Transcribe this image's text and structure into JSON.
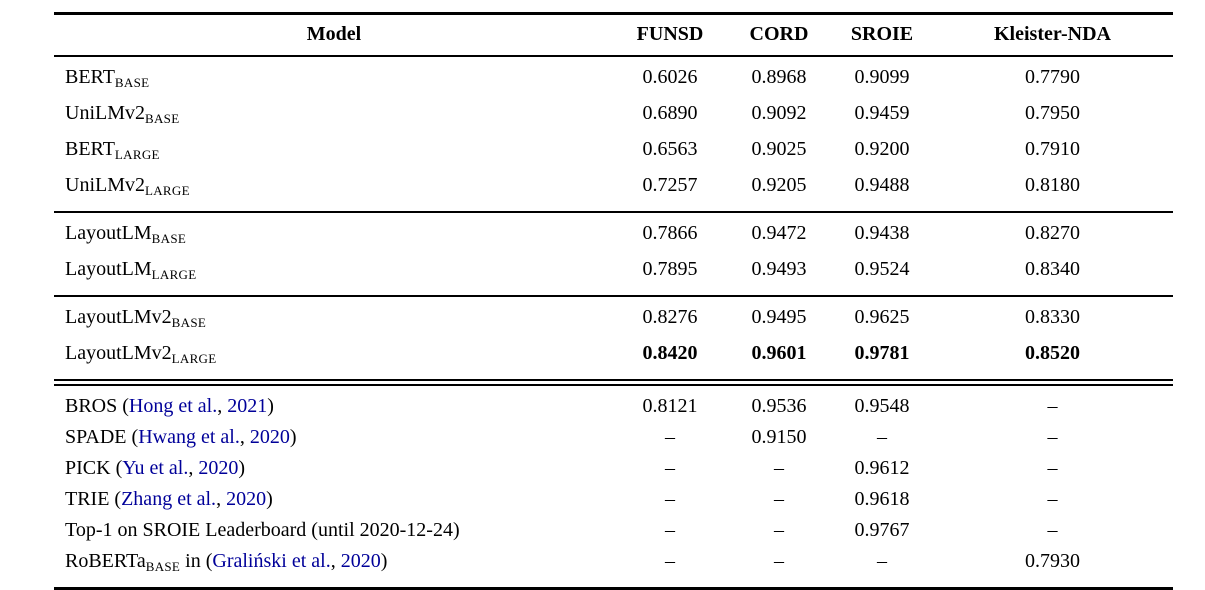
{
  "page": {
    "background": "#ffffff"
  },
  "colors": {
    "text": "#000000",
    "rule": "#000000",
    "citation": "#000099"
  },
  "table": {
    "columns": [
      "Model",
      "FUNSD",
      "CORD",
      "SROIE",
      "Kleister-NDA"
    ],
    "missing_value": "–",
    "groups": [
      {
        "separator": "none",
        "rows": [
          {
            "model": [
              {
                "text": "BERT"
              },
              {
                "text": "BASE",
                "style": "sub"
              }
            ],
            "values": [
              "0.6026",
              "0.8968",
              "0.9099",
              "0.7790"
            ],
            "bold": false
          },
          {
            "model": [
              {
                "text": "UniLMv2"
              },
              {
                "text": "BASE",
                "style": "sub"
              }
            ],
            "values": [
              "0.6890",
              "0.9092",
              "0.9459",
              "0.7950"
            ],
            "bold": false
          },
          {
            "model": [
              {
                "text": "BERT"
              },
              {
                "text": "LARGE",
                "style": "sub"
              }
            ],
            "values": [
              "0.6563",
              "0.9025",
              "0.9200",
              "0.7910"
            ],
            "bold": false
          },
          {
            "model": [
              {
                "text": "UniLMv2"
              },
              {
                "text": "LARGE",
                "style": "sub"
              }
            ],
            "values": [
              "0.7257",
              "0.9205",
              "0.9488",
              "0.8180"
            ],
            "bold": false
          }
        ]
      },
      {
        "separator": "single",
        "rows": [
          {
            "model": [
              {
                "text": "LayoutLM"
              },
              {
                "text": "BASE",
                "style": "sub"
              }
            ],
            "values": [
              "0.7866",
              "0.9472",
              "0.9438",
              "0.8270"
            ],
            "bold": false
          },
          {
            "model": [
              {
                "text": "LayoutLM"
              },
              {
                "text": "LARGE",
                "style": "sub"
              }
            ],
            "values": [
              "0.7895",
              "0.9493",
              "0.9524",
              "0.8340"
            ],
            "bold": false
          }
        ]
      },
      {
        "separator": "single",
        "rows": [
          {
            "model": [
              {
                "text": "LayoutLMv2"
              },
              {
                "text": "BASE",
                "style": "sub"
              }
            ],
            "values": [
              "0.8276",
              "0.9495",
              "0.9625",
              "0.8330"
            ],
            "bold": false
          },
          {
            "model": [
              {
                "text": "LayoutLMv2"
              },
              {
                "text": "LARGE",
                "style": "sub"
              }
            ],
            "values": [
              "0.8420",
              "0.9601",
              "0.9781",
              "0.8520"
            ],
            "bold": true
          }
        ]
      },
      {
        "separator": "double",
        "rows": [
          {
            "model": [
              {
                "text": "BROS ("
              },
              {
                "text": "Hong et al.",
                "style": "cite"
              },
              {
                "text": ","
              },
              {
                "text": " 2021",
                "style": "cite"
              },
              {
                "text": ")"
              }
            ],
            "values": [
              "0.8121",
              "0.9536",
              "0.9548",
              "–"
            ],
            "bold": false
          },
          {
            "model": [
              {
                "text": "SPADE ("
              },
              {
                "text": "Hwang et al.",
                "style": "cite"
              },
              {
                "text": ","
              },
              {
                "text": " 2020",
                "style": "cite"
              },
              {
                "text": ")"
              }
            ],
            "values": [
              "–",
              "0.9150",
              "–",
              "–"
            ],
            "bold": false
          },
          {
            "model": [
              {
                "text": "PICK ("
              },
              {
                "text": "Yu et al.",
                "style": "cite"
              },
              {
                "text": ","
              },
              {
                "text": " 2020",
                "style": "cite"
              },
              {
                "text": ")"
              }
            ],
            "values": [
              "–",
              "–",
              "0.9612",
              "–"
            ],
            "bold": false
          },
          {
            "model": [
              {
                "text": "TRIE ("
              },
              {
                "text": "Zhang et al.",
                "style": "cite"
              },
              {
                "text": ","
              },
              {
                "text": " 2020",
                "style": "cite"
              },
              {
                "text": ")"
              }
            ],
            "values": [
              "–",
              "–",
              "0.9618",
              "–"
            ],
            "bold": false
          },
          {
            "model": [
              {
                "text": "Top-1 on SROIE Leaderboard (until 2020-12-24)"
              }
            ],
            "values": [
              "–",
              "–",
              "0.9767",
              "–"
            ],
            "bold": false
          },
          {
            "model": [
              {
                "text": "RoBERTa"
              },
              {
                "text": "BASE",
                "style": "sub"
              },
              {
                "text": " in ("
              },
              {
                "text": "Graliński et al.",
                "style": "cite"
              },
              {
                "text": ","
              },
              {
                "text": " 2020",
                "style": "cite"
              },
              {
                "text": ")"
              }
            ],
            "values": [
              "–",
              "–",
              "–",
              "0.7930"
            ],
            "bold": false
          }
        ]
      }
    ]
  }
}
